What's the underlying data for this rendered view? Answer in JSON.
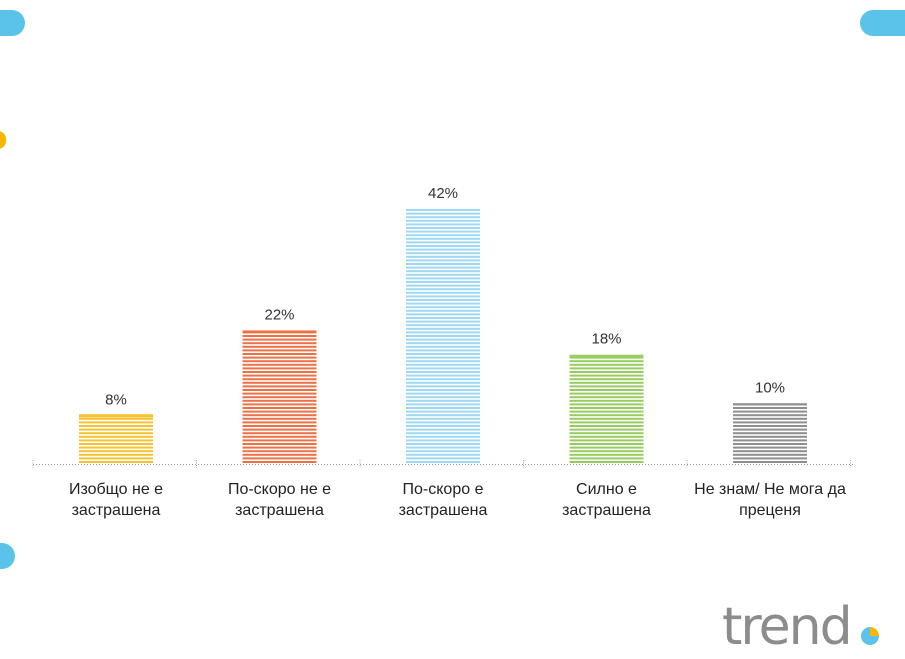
{
  "chart_data": {
    "type": "bar",
    "categories": [
      "Изобщо не е\nзастрашена",
      "По-скоро не е\nзастрашена",
      "По-скоро е\nзастрашена",
      "Силно е\nзастрашена",
      "Не знам/ Не мога да\nпреценя"
    ],
    "values": [
      8,
      22,
      42,
      18,
      10
    ],
    "value_labels": [
      "8%",
      "22%",
      "42%",
      "18%",
      "10%"
    ],
    "colors": [
      "#f6c232",
      "#ee7046",
      "#9fd8f4",
      "#97cc5f",
      "#8f8f8f"
    ],
    "ylim": [
      0,
      42
    ],
    "title": "",
    "xlabel": "",
    "ylabel": "",
    "grid": false,
    "legend": "none"
  },
  "logo": {
    "text": "trend",
    "colors": [
      "#8c8c8c",
      "#5bc3ea",
      "#f6b700"
    ]
  },
  "decorations": {
    "accent_blue": "#5bc3ea",
    "accent_yellow": "#f6b700"
  }
}
